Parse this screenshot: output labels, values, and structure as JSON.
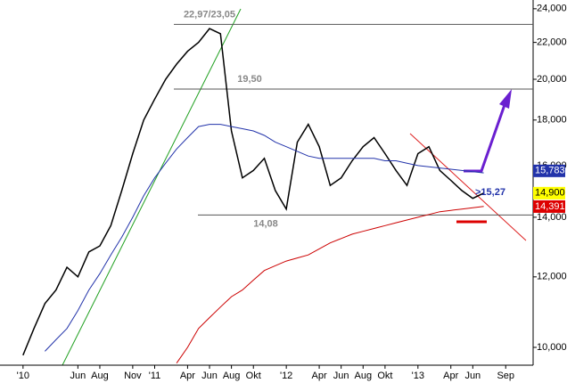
{
  "chart_data": {
    "type": "line",
    "x": [
      0,
      1,
      2,
      3,
      4,
      5,
      6,
      7,
      8,
      9,
      10,
      11,
      12,
      13,
      14,
      15,
      16,
      17,
      18,
      19,
      20,
      21,
      22,
      23,
      24,
      25,
      26,
      27,
      28,
      29,
      30,
      31,
      32,
      33,
      34,
      35,
      36,
      37,
      38,
      39,
      40,
      41,
      42
    ],
    "xlim": [
      -2.1,
      46.5
    ],
    "xticks": [
      {
        "value": 0,
        "label": "'10"
      },
      {
        "value": 5,
        "label": "Jun"
      },
      {
        "value": 7,
        "label": "Aug"
      },
      {
        "value": 10,
        "label": "Nov"
      },
      {
        "value": 12,
        "label": "'11"
      },
      {
        "value": 15,
        "label": "Apr"
      },
      {
        "value": 17,
        "label": "Jun"
      },
      {
        "value": 19,
        "label": "Aug"
      },
      {
        "value": 21,
        "label": "Okt"
      },
      {
        "value": 24,
        "label": "'12"
      },
      {
        "value": 27,
        "label": "Apr"
      },
      {
        "value": 29,
        "label": "Jun"
      },
      {
        "value": 31,
        "label": "Aug"
      },
      {
        "value": 33,
        "label": "Okt"
      },
      {
        "value": 36,
        "label": "'13"
      },
      {
        "value": 39,
        "label": "Apr"
      },
      {
        "value": 41,
        "label": "Jun"
      },
      {
        "value": 44,
        "label": "Sep"
      }
    ],
    "ylim": [
      9550,
      24550
    ],
    "log_scale": true,
    "yticks": [
      {
        "value": 10000,
        "label": "10,000"
      },
      {
        "value": 12000,
        "label": "12,000"
      },
      {
        "value": 14000,
        "label": "14,000"
      },
      {
        "value": 16000,
        "label": "16,000"
      },
      {
        "value": 18000,
        "label": "18,000"
      },
      {
        "value": 20000,
        "label": "20,000"
      },
      {
        "value": 22000,
        "label": "22,000"
      },
      {
        "value": 24000,
        "label": "24,000"
      }
    ],
    "series": [
      {
        "color": "#000000",
        "values": [
          9800,
          10500,
          11200,
          11600,
          12300,
          12000,
          12800,
          13000,
          13700,
          15000,
          16500,
          18000,
          19000,
          20000,
          20800,
          21500,
          22000,
          22800,
          22500,
          17500,
          15500,
          15800,
          16300,
          15000,
          14300,
          17000,
          17800,
          16800,
          15200,
          15500,
          16200,
          16800,
          17200,
          16500,
          15800,
          15200,
          16500,
          16800,
          15800,
          15400,
          15000,
          14700,
          14900
        ]
      },
      {
        "color": "#2233aa",
        "values": [
          null,
          null,
          9900,
          10200,
          10500,
          11000,
          11600,
          12100,
          12700,
          13300,
          14000,
          14800,
          15500,
          16100,
          16700,
          17200,
          17700,
          17800,
          17800,
          17700,
          17600,
          17500,
          17300,
          17000,
          16800,
          16600,
          16400,
          16300,
          16300,
          16300,
          16300,
          16300,
          16300,
          16200,
          16200,
          16100,
          16000,
          15950,
          15900,
          15850,
          15800,
          15750,
          15700
        ]
      },
      {
        "color": "#cc0000",
        "values": [
          null,
          null,
          null,
          null,
          null,
          null,
          null,
          null,
          null,
          null,
          null,
          null,
          null,
          null,
          9600,
          10000,
          10500,
          10800,
          11100,
          11400,
          11600,
          11900,
          12200,
          12350,
          12500,
          12600,
          12700,
          12900,
          13100,
          13250,
          13400,
          13500,
          13600,
          13700,
          13800,
          13900,
          14000,
          14100,
          14200,
          14250,
          14300,
          14350,
          14400
        ]
      }
    ],
    "levels": [
      {
        "value": 23050,
        "label": "22,97/23,05"
      },
      {
        "value": 19500,
        "label": "19,50"
      },
      {
        "value": 14080,
        "label": "14,08"
      }
    ],
    "target": {
      "value": 15270,
      "label": ">15,27"
    },
    "price_labels": [
      {
        "value": 15783,
        "label": "15,783",
        "color": "#2233aa"
      },
      {
        "value": 14900,
        "label": "14,900",
        "color": "#ffff00"
      },
      {
        "value": 14391,
        "label": "14,391",
        "color": "#dd0000"
      }
    ]
  }
}
